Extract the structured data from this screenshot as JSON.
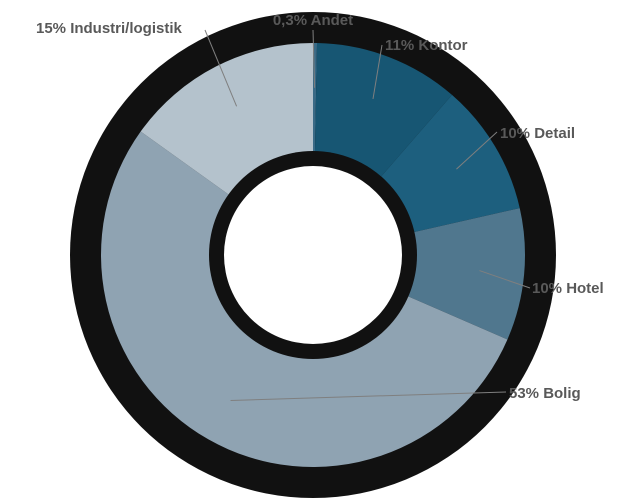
{
  "chart_data": {
    "type": "pie",
    "donut": true,
    "title": "",
    "categories": [
      "Andet",
      "Kontor",
      "Detail",
      "Hotel",
      "Bolig",
      "Industri/logistik"
    ],
    "values": [
      0.3,
      11,
      10,
      10,
      53,
      15
    ],
    "labels": [
      "0,3% Andet",
      "11% Kontor",
      "10% Detail",
      "10% Hotel",
      "53% Bolig",
      "15% Industri/logistik"
    ],
    "colors": [
      "#3a6a86",
      "#175673",
      "#1d5f7e",
      "#50778e",
      "#8fa3b2",
      "#b4c2cc"
    ],
    "ring_color": "#111111",
    "legend": "none"
  }
}
